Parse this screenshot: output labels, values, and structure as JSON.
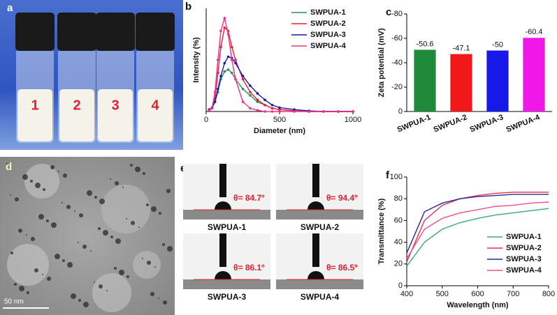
{
  "chart_data": [
    {
      "type": "line",
      "panel_label": "b",
      "xlabel": "Diameter (nm)",
      "ylabel": "Intensity (%)",
      "x": [
        20,
        40,
        60,
        80,
        100,
        125,
        150,
        175,
        200,
        250,
        300,
        350,
        400,
        450,
        500,
        600,
        700,
        800,
        900,
        1000
      ],
      "xlim": [
        0,
        1000
      ],
      "xticks": [
        0,
        500,
        1000
      ],
      "ylim": [
        0,
        16
      ],
      "legend": "upper right",
      "series": [
        {
          "name": "SWPUA-1",
          "color": "#2e8b57",
          "values": [
            0.3,
            0.5,
            1.5,
            3,
            5,
            6.2,
            6.5,
            6,
            5,
            3.5,
            2.5,
            1.5,
            1,
            0.5,
            0.3,
            0.1,
            0,
            0,
            0,
            0
          ]
        },
        {
          "name": "SWPUA-2",
          "color": "#e8203a",
          "values": [
            0.2,
            0.5,
            2,
            6,
            10,
            13,
            12.5,
            10,
            8,
            5,
            3,
            1.8,
            1,
            0.5,
            0.3,
            0.1,
            0,
            0,
            0,
            0
          ]
        },
        {
          "name": "SWPUA-3",
          "color": "#1a1aa6",
          "values": [
            0.3,
            0.6,
            1.5,
            3.5,
            5.5,
            7.5,
            8.5,
            8.3,
            7.5,
            5.5,
            4,
            2.8,
            1.8,
            1,
            0.6,
            0.3,
            0.1,
            0,
            0,
            0
          ]
        },
        {
          "name": "SWPUA-4",
          "color": "#f0308a",
          "values": [
            0.2,
            0.5,
            3,
            8,
            12.5,
            14.5,
            12,
            8,
            5,
            1.5,
            0.5,
            0.2,
            0,
            0,
            0,
            0,
            0,
            0,
            0,
            0
          ]
        }
      ]
    },
    {
      "type": "bar",
      "panel_label": "c",
      "ylabel": "Zeta potential (mV)",
      "categories": [
        "SWPUA-1",
        "SWPUA-2",
        "SWPUA-3",
        "SWPUA-4"
      ],
      "values": [
        -50.6,
        -47.1,
        -50,
        -60.4
      ],
      "colors": [
        "#1f8a3a",
        "#f01818",
        "#1818e8",
        "#f018e8"
      ],
      "ylim": [
        0,
        -80
      ],
      "yticks": [
        -80,
        -60,
        -40,
        -20,
        0
      ]
    },
    {
      "type": "line",
      "panel_label": "f",
      "xlabel": "Wavelength (nm)",
      "ylabel": "Transmittance (%)",
      "x": [
        400,
        450,
        500,
        550,
        600,
        650,
        700,
        750,
        800
      ],
      "xlim": [
        400,
        800
      ],
      "xticks": [
        400,
        500,
        600,
        700,
        800
      ],
      "ylim": [
        0,
        100
      ],
      "yticks": [
        0,
        20,
        40,
        60,
        80,
        100
      ],
      "legend": "lower right",
      "series": [
        {
          "name": "SWPUA-1",
          "color": "#3aa87a",
          "values": [
            18,
            40,
            52,
            58,
            62,
            65,
            67,
            69,
            71
          ]
        },
        {
          "name": "SWPUA-2",
          "color": "#e8304a",
          "values": [
            22,
            60,
            74,
            80,
            83,
            85,
            86,
            86,
            86
          ]
        },
        {
          "name": "SWPUA-3",
          "color": "#2a2a9a",
          "values": [
            30,
            68,
            76,
            80,
            82,
            83,
            84,
            84,
            84
          ]
        },
        {
          "name": "SWPUA-4",
          "color": "#f0508a",
          "values": [
            25,
            52,
            62,
            67,
            70,
            73,
            74,
            76,
            77
          ]
        }
      ]
    }
  ],
  "photo_a": {
    "panel_label": "a",
    "vial_numbers": [
      "1",
      "2",
      "3",
      "4"
    ]
  },
  "photo_d": {
    "panel_label": "d",
    "scale_bar": "50 nm"
  },
  "photo_e": {
    "panel_label": "e",
    "images": [
      {
        "sample": "SWPUA-1",
        "angle": "θ= 84.7º"
      },
      {
        "sample": "SWPUA-2",
        "angle": "θ= 94.4º"
      },
      {
        "sample": "SWPUA-3",
        "angle": "θ= 86.1º"
      },
      {
        "sample": "SWPUA-4",
        "angle": "θ= 86.5º"
      }
    ]
  }
}
